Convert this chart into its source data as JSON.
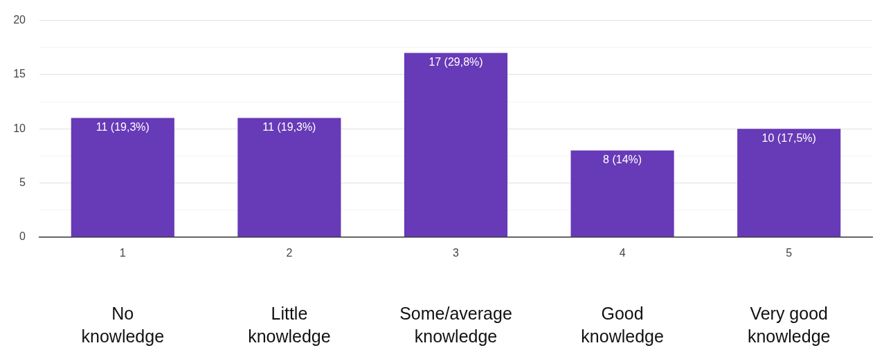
{
  "chart_data": {
    "type": "bar",
    "categories": [
      "1",
      "2",
      "3",
      "4",
      "5"
    ],
    "values": [
      11,
      11,
      17,
      8,
      10
    ],
    "color": "#673ab7",
    "value_labels": [
      "11 (19,3%)",
      "11 (19,3%)",
      "17 (29,8%)",
      "8 (14%)",
      "10 (17,5%)"
    ],
    "ylim": [
      0,
      20
    ],
    "yticks": [
      0,
      {
        "value": 2.5,
        "label": null
      },
      5,
      {
        "value": 7.5,
        "label": null
      },
      10,
      {
        "value": 12.5,
        "label": null
      },
      15,
      {
        "value": 17.5,
        "label": null
      },
      20
    ],
    "grid": "y",
    "legend": false,
    "annotations": [
      "No knowledge",
      "Little knowledge",
      "Some/average knowledge",
      "Good knowledge",
      "Very good knowledge"
    ]
  }
}
